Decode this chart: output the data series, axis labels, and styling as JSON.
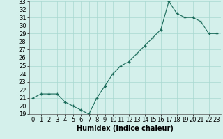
{
  "x": [
    0,
    1,
    2,
    3,
    4,
    5,
    6,
    7,
    8,
    9,
    10,
    11,
    12,
    13,
    14,
    15,
    16,
    17,
    18,
    19,
    20,
    21,
    22,
    23
  ],
  "y": [
    21,
    21.5,
    21.5,
    21.5,
    20.5,
    20,
    19.5,
    19,
    21,
    22.5,
    24,
    25,
    25.5,
    26.5,
    27.5,
    28.5,
    29.5,
    33,
    31.5,
    31,
    31,
    30.5,
    29,
    29
  ],
  "line_color": "#1a6b5a",
  "marker": "+",
  "bg_color": "#d4f0eb",
  "grid_color": "#a8d8d0",
  "xlabel": "Humidex (Indice chaleur)",
  "ylim": [
    19,
    33
  ],
  "xlim_min": -0.5,
  "xlim_max": 23.5,
  "yticks": [
    19,
    20,
    21,
    22,
    23,
    24,
    25,
    26,
    27,
    28,
    29,
    30,
    31,
    32,
    33
  ],
  "xtick_labels": [
    "0",
    "1",
    "2",
    "3",
    "4",
    "5",
    "6",
    "7",
    "8",
    "9",
    "10",
    "11",
    "12",
    "13",
    "14",
    "15",
    "16",
    "17",
    "18",
    "19",
    "20",
    "21",
    "22",
    "23"
  ],
  "label_fontsize": 7,
  "tick_fontsize": 6
}
